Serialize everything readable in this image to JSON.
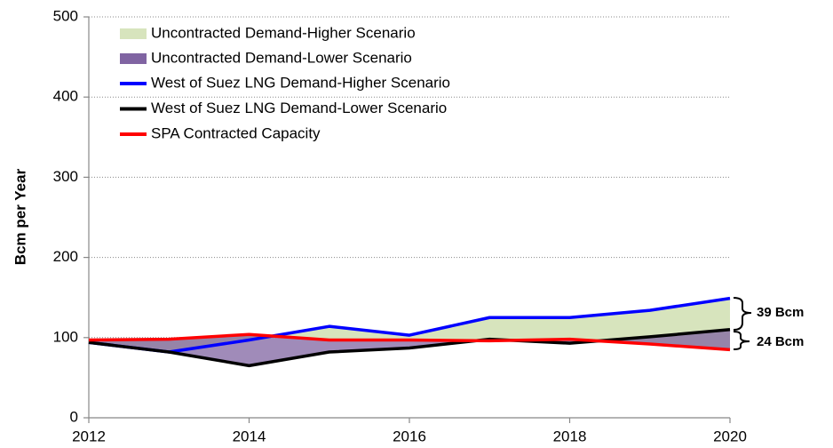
{
  "chart_data": {
    "type": "line",
    "ylabel": "Bcm per Year",
    "x": [
      2012,
      2013,
      2014,
      2015,
      2016,
      2017,
      2018,
      2019,
      2020
    ],
    "xlim": [
      2012,
      2020
    ],
    "xticks": [
      2012,
      2014,
      2016,
      2018,
      2020
    ],
    "ylim": [
      0,
      500
    ],
    "yticks": [
      0,
      100,
      200,
      300,
      400,
      500
    ],
    "grid": true,
    "areas": [
      {
        "name": "Uncontracted Demand-Higher Scenario",
        "color": "#d7e4bd"
      },
      {
        "name": "Uncontracted Demand-Lower Scenario",
        "color": "#8064a2"
      }
    ],
    "series": [
      {
        "name": "West of Suez LNG Demand-Higher Scenario",
        "color": "#0000ff",
        "values": [
          94,
          82,
          97,
          114,
          103,
          125,
          125,
          134,
          149
        ]
      },
      {
        "name": "West of Suez LNG Demand-Lower Scenario",
        "color": "#000000",
        "values": [
          94,
          82,
          65,
          82,
          87,
          98,
          93,
          101,
          110
        ]
      },
      {
        "name": "SPA Contracted Capacity",
        "color": "#ff0000",
        "values": [
          97,
          98,
          104,
          97,
          97,
          96,
          98,
          92,
          85
        ]
      }
    ],
    "annotations": [
      "39 Bcm",
      "24 Bcm"
    ]
  }
}
